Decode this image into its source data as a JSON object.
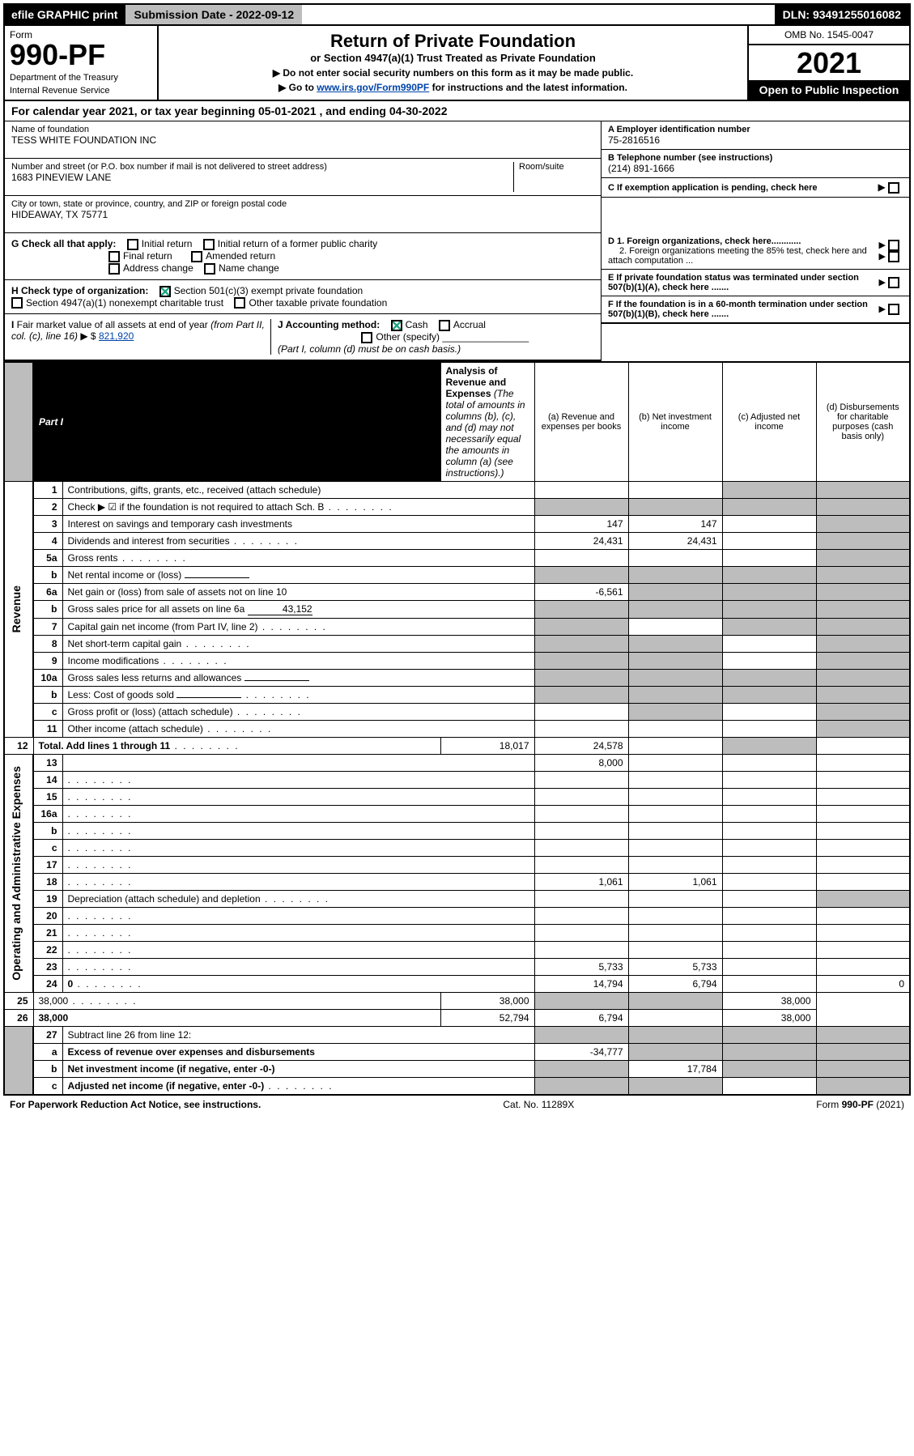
{
  "topbar": {
    "efile": "efile GRAPHIC print",
    "submission": "Submission Date - 2022-09-12",
    "dln": "DLN: 93491255016082"
  },
  "header": {
    "form": "Form",
    "formnum": "990-PF",
    "dept": "Department of the Treasury",
    "irs": "Internal Revenue Service",
    "title": "Return of Private Foundation",
    "subtitle": "or Section 4947(a)(1) Trust Treated as Private Foundation",
    "note1": "▶ Do not enter social security numbers on this form as it may be made public.",
    "note2": "▶ Go to www.irs.gov/Form990PF for instructions and the latest information.",
    "omb": "OMB No. 1545-0047",
    "year": "2021",
    "open": "Open to Public Inspection"
  },
  "calyear": {
    "pre": "For calendar year 2021, or tax year beginning ",
    "begin": "05-01-2021",
    "mid": " , and ending ",
    "end": "04-30-2022"
  },
  "foundation": {
    "name_lbl": "Name of foundation",
    "name": "TESS WHITE FOUNDATION INC",
    "addr_lbl": "Number and street (or P.O. box number if mail is not delivered to street address)",
    "room_lbl": "Room/suite",
    "addr": "1683 PINEVIEW LANE",
    "city_lbl": "City or town, state or province, country, and ZIP or foreign postal code",
    "city": "HIDEAWAY, TX  75771",
    "ein_lbl": "A Employer identification number",
    "ein": "75-2816516",
    "tel_lbl": "B Telephone number (see instructions)",
    "tel": "(214) 891-1666",
    "c_lbl": "C If exemption application is pending, check here",
    "d1": "D 1. Foreign organizations, check here............",
    "d2": "2. Foreign organizations meeting the 85% test, check here and attach computation ...",
    "e_lbl": "E  If private foundation status was terminated under section 507(b)(1)(A), check here .......",
    "f_lbl": "F  If the foundation is in a 60-month termination under section 507(b)(1)(B), check here .......",
    "g_lbl": "G Check all that apply:",
    "g_opts": {
      "initial": "Initial return",
      "initial_pub": "Initial return of a former public charity",
      "final": "Final return",
      "amended": "Amended return",
      "addr": "Address change",
      "name": "Name change"
    },
    "h_lbl": "H Check type of organization:",
    "h1": "Section 501(c)(3) exempt private foundation",
    "h2": "Section 4947(a)(1) nonexempt charitable trust",
    "h3": "Other taxable private foundation",
    "i_lbl": "I Fair market value of all assets at end of year (from Part II, col. (c), line 16) ▶ $",
    "i_val": "821,920",
    "j_lbl": "J Accounting method:",
    "j_cash": "Cash",
    "j_accr": "Accrual",
    "j_other": "Other (specify)",
    "j_note": "(Part I, column (d) must be on cash basis.)"
  },
  "part1": {
    "label": "Part I",
    "title": "Analysis of Revenue and Expenses",
    "subtitle": "(The total of amounts in columns (b), (c), and (d) may not necessarily equal the amounts in column (a) (see instructions).)",
    "cols": {
      "a": "(a)   Revenue and expenses per books",
      "b": "(b)   Net investment income",
      "c": "(c)   Adjusted net income",
      "d": "(d)   Disbursements for charitable purposes (cash basis only)"
    },
    "side_rev": "Revenue",
    "side_exp": "Operating and Administrative Expenses",
    "rows": [
      {
        "n": "1",
        "d": "Contributions, gifts, grants, etc., received (attach schedule)",
        "a": "",
        "b": "",
        "c_sh": true,
        "d_sh": true
      },
      {
        "n": "2",
        "d": "Check ▶ ☑ if the foundation is not required to attach Sch. B",
        "a_sh": true,
        "b_sh": true,
        "c_sh": true,
        "d_sh": true,
        "dots": true
      },
      {
        "n": "3",
        "d": "Interest on savings and temporary cash investments",
        "a": "147",
        "b": "147",
        "c": "",
        "d_sh": true
      },
      {
        "n": "4",
        "d": "Dividends and interest from securities",
        "a": "24,431",
        "b": "24,431",
        "c": "",
        "d_sh": true,
        "dots": true
      },
      {
        "n": "5a",
        "d": "Gross rents",
        "a": "",
        "b": "",
        "c": "",
        "d_sh": true,
        "dots": true
      },
      {
        "n": "b",
        "d": "Net rental income or (loss)",
        "a_sh": true,
        "b_sh": true,
        "c_sh": true,
        "d_sh": true,
        "inline": ""
      },
      {
        "n": "6a",
        "d": "Net gain or (loss) from sale of assets not on line 10",
        "a": "-6,561",
        "b_sh": true,
        "c_sh": true,
        "d_sh": true
      },
      {
        "n": "b",
        "d": "Gross sales price for all assets on line 6a",
        "inline": "43,152",
        "a_sh": true,
        "b_sh": true,
        "c_sh": true,
        "d_sh": true
      },
      {
        "n": "7",
        "d": "Capital gain net income (from Part IV, line 2)",
        "a_sh": true,
        "b": "",
        "c_sh": true,
        "d_sh": true,
        "dots": true
      },
      {
        "n": "8",
        "d": "Net short-term capital gain",
        "a_sh": true,
        "b_sh": true,
        "c": "",
        "d_sh": true,
        "dots": true
      },
      {
        "n": "9",
        "d": "Income modifications",
        "a_sh": true,
        "b_sh": true,
        "c": "",
        "d_sh": true,
        "dots": true
      },
      {
        "n": "10a",
        "d": "Gross sales less returns and allowances",
        "inline": "",
        "a_sh": true,
        "b_sh": true,
        "c_sh": true,
        "d_sh": true
      },
      {
        "n": "b",
        "d": "Less: Cost of goods sold",
        "inline": "",
        "a_sh": true,
        "b_sh": true,
        "c_sh": true,
        "d_sh": true,
        "dots": true
      },
      {
        "n": "c",
        "d": "Gross profit or (loss) (attach schedule)",
        "a": "",
        "b_sh": true,
        "c": "",
        "d_sh": true,
        "dots": true
      },
      {
        "n": "11",
        "d": "Other income (attach schedule)",
        "a": "",
        "b": "",
        "c": "",
        "d_sh": true,
        "dots": true
      },
      {
        "n": "12",
        "d": "Total. Add lines 1 through 11",
        "bold": true,
        "a": "18,017",
        "b": "24,578",
        "c": "",
        "d_sh": true,
        "dots": true
      },
      {
        "n": "13",
        "d": "",
        "a": "8,000",
        "b": "",
        "c": "",
        "sec": "exp"
      },
      {
        "n": "14",
        "d": "",
        "a": "",
        "b": "",
        "c": "",
        "dots": true
      },
      {
        "n": "15",
        "d": "",
        "a": "",
        "b": "",
        "c": "",
        "dots": true
      },
      {
        "n": "16a",
        "d": "",
        "a": "",
        "b": "",
        "c": "",
        "dots": true
      },
      {
        "n": "b",
        "d": "",
        "a": "",
        "b": "",
        "c": "",
        "dots": true
      },
      {
        "n": "c",
        "d": "",
        "a": "",
        "b": "",
        "c": "",
        "dots": true
      },
      {
        "n": "17",
        "d": "",
        "a": "",
        "b": "",
        "c": "",
        "dots": true
      },
      {
        "n": "18",
        "d": "",
        "a": "1,061",
        "b": "1,061",
        "c": "",
        "dots": true
      },
      {
        "n": "19",
        "d": "Depreciation (attach schedule) and depletion",
        "a": "",
        "b": "",
        "c": "",
        "d_sh": true,
        "dots": true
      },
      {
        "n": "20",
        "d": "",
        "a": "",
        "b": "",
        "c": "",
        "dots": true
      },
      {
        "n": "21",
        "d": "",
        "a": "",
        "b": "",
        "c": "",
        "dots": true
      },
      {
        "n": "22",
        "d": "",
        "a": "",
        "b": "",
        "c": "",
        "dots": true
      },
      {
        "n": "23",
        "d": "",
        "a": "5,733",
        "b": "5,733",
        "c": "",
        "dots": true
      },
      {
        "n": "24",
        "d": "0",
        "bold": true,
        "a": "14,794",
        "b": "6,794",
        "c": "",
        "dots": true
      },
      {
        "n": "25",
        "d": "38,000",
        "a": "38,000",
        "b_sh": true,
        "c_sh": true,
        "dots": true
      },
      {
        "n": "26",
        "d": "38,000",
        "bold": true,
        "a": "52,794",
        "b": "6,794",
        "c": ""
      },
      {
        "n": "27",
        "d": "Subtract line 26 from line 12:",
        "a_sh": true,
        "b_sh": true,
        "c_sh": true,
        "d_sh": true,
        "sec": "end"
      },
      {
        "n": "a",
        "d": "Excess of revenue over expenses and disbursements",
        "bold": true,
        "a": "-34,777",
        "b_sh": true,
        "c_sh": true,
        "d_sh": true
      },
      {
        "n": "b",
        "d": "Net investment income (if negative, enter -0-)",
        "bold": true,
        "a_sh": true,
        "b": "17,784",
        "c_sh": true,
        "d_sh": true
      },
      {
        "n": "c",
        "d": "Adjusted net income (if negative, enter -0-)",
        "bold": true,
        "a_sh": true,
        "b_sh": true,
        "c": "",
        "d_sh": true,
        "dots": true
      }
    ]
  },
  "footer": {
    "left": "For Paperwork Reduction Act Notice, see instructions.",
    "cat": "Cat. No. 11289X",
    "form": "Form 990-PF (2021)"
  },
  "colors": {
    "black": "#000000",
    "gray": "#bdbdbd",
    "link": "#0044aa",
    "green": "#22aa88"
  }
}
